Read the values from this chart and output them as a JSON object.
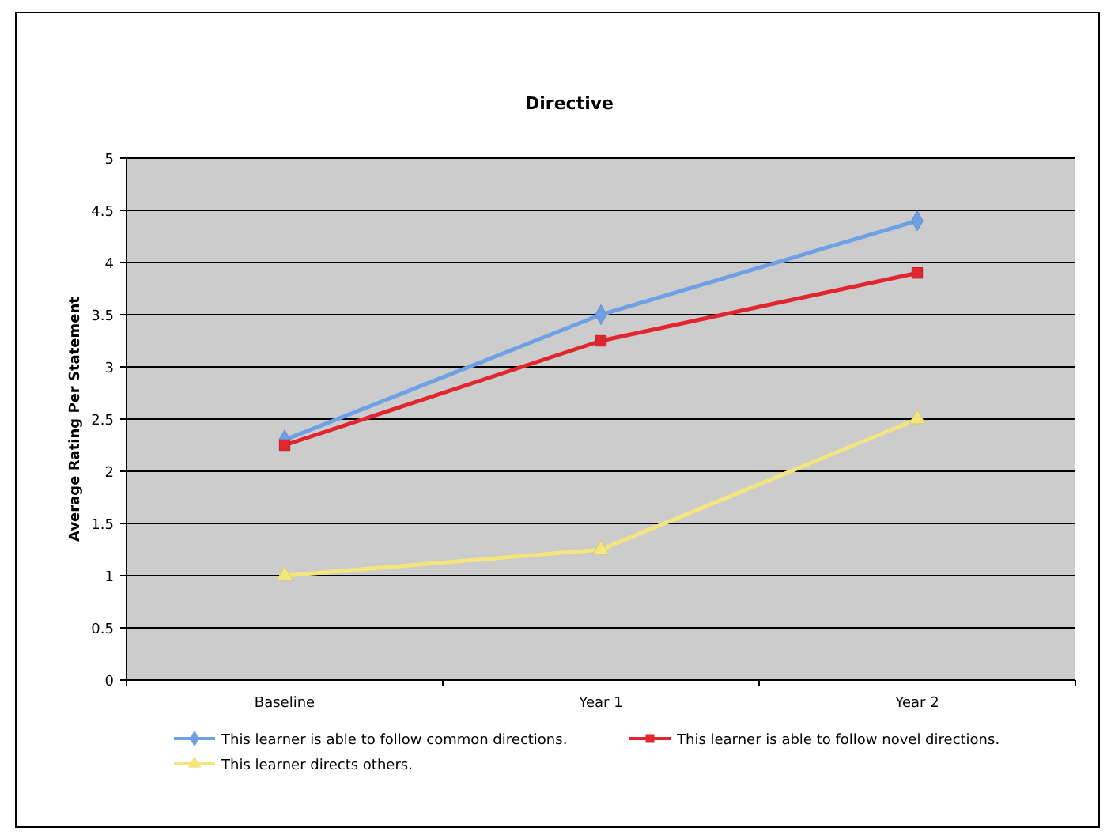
{
  "chart_data": {
    "type": "line",
    "title": "Directive",
    "ylabel": "Average Rating  Per Statement",
    "categories": [
      "Baseline",
      "Year 1",
      "Year 2"
    ],
    "ylim": [
      0,
      5
    ],
    "yticks": [
      0,
      0.5,
      1,
      1.5,
      2,
      2.5,
      3,
      3.5,
      4,
      4.5,
      5
    ],
    "grid": "y",
    "legend": "bottom",
    "series": [
      {
        "name": "This learner is able to follow common directions.",
        "color": "#6fa0e6",
        "marker": "diamond",
        "values": [
          2.3,
          3.5,
          4.4
        ]
      },
      {
        "name": "This learner is able to follow novel directions.",
        "color": "#e0262e",
        "marker": "square",
        "values": [
          2.25,
          3.25,
          3.9
        ]
      },
      {
        "name": "This learner directs others.",
        "color": "#f3e67e",
        "marker": "triangle",
        "values": [
          1,
          1.25,
          2.5
        ]
      }
    ]
  }
}
